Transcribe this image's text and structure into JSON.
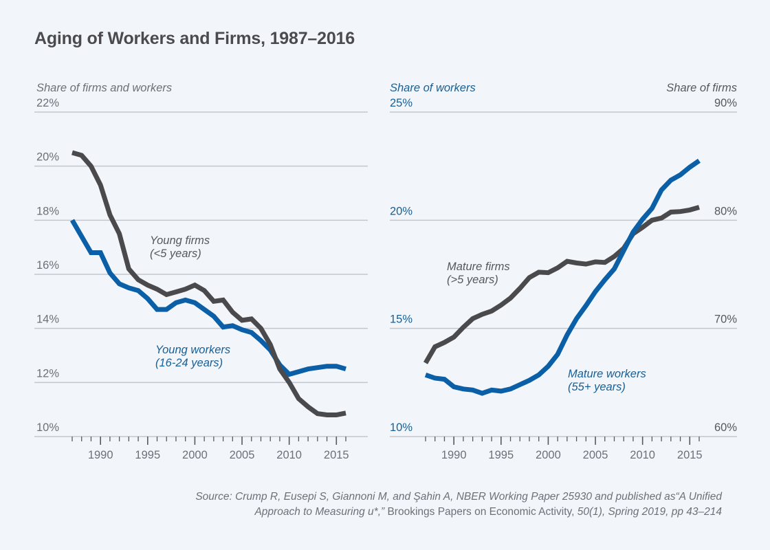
{
  "title": "Aging of Workers and Firms, 1987–2016",
  "colors": {
    "background": "#f2f6fa",
    "firms": "#4a4a4d",
    "workers": "#0a5fa6",
    "gridline": "#c3c6cc",
    "tick_text": "#6c7078",
    "workers_text": "#175f96"
  },
  "source": {
    "line1_italic": "Source: Crump R, Eusepi S, Giannoni M, and Şahin A, NBER Working Paper 25930 and published as“A Unified",
    "line2_italic_a": "Approach to Measuring u*,”",
    "line2_regular": " Brookings Papers on Economic Activity,",
    "line2_italic_b": " 50(1), Spring 2019, pp 43–214"
  },
  "chart_data": [
    {
      "type": "line",
      "title": "",
      "ylabel": "Share of firms and workers",
      "xlabel": "",
      "ylim": [
        10,
        22
      ],
      "yticks": [
        10,
        12,
        14,
        16,
        18,
        20,
        22
      ],
      "ytick_labels": [
        "10%",
        "12%",
        "14%",
        "16%",
        "18%",
        "20%",
        "22%"
      ],
      "xlim": [
        1987,
        2016
      ],
      "xticks": [
        1990,
        1995,
        2000,
        2005,
        2010,
        2015
      ],
      "xtick_labels": [
        "1990",
        "1995",
        "2000",
        "2005",
        "2010",
        "2015"
      ],
      "grid": true,
      "x": [
        1987,
        1988,
        1989,
        1990,
        1991,
        1992,
        1993,
        1994,
        1995,
        1996,
        1997,
        1998,
        1999,
        2000,
        2001,
        2002,
        2003,
        2004,
        2005,
        2006,
        2007,
        2008,
        2009,
        2010,
        2011,
        2012,
        2013,
        2014,
        2015,
        2016
      ],
      "series": [
        {
          "name": "Young firms",
          "annotation": [
            "Young firms",
            "(<5 years)"
          ],
          "color": "#4a4a4d",
          "values": [
            20.5,
            20.4,
            20.0,
            19.3,
            18.2,
            17.5,
            16.2,
            15.8,
            15.6,
            15.45,
            15.25,
            15.35,
            15.45,
            15.6,
            15.4,
            15.0,
            15.05,
            14.6,
            14.3,
            14.35,
            14.0,
            13.4,
            12.5,
            12.0,
            11.4,
            11.1,
            10.85,
            10.8,
            10.8,
            10.87
          ]
        },
        {
          "name": "Young workers",
          "annotation": [
            "Young workers",
            "(16-24 years)"
          ],
          "color": "#0a5fa6",
          "values": [
            18.0,
            17.4,
            16.8,
            16.8,
            16.05,
            15.65,
            15.5,
            15.4,
            15.1,
            14.7,
            14.7,
            14.95,
            15.05,
            14.95,
            14.7,
            14.45,
            14.05,
            14.1,
            13.95,
            13.85,
            13.55,
            13.2,
            12.65,
            12.3,
            12.4,
            12.5,
            12.55,
            12.6,
            12.6,
            12.5
          ]
        }
      ]
    },
    {
      "type": "line",
      "title": "",
      "ylabel_left": "Share of workers",
      "ylabel_right": "Share of firms",
      "xlabel": "",
      "ylim_left": [
        10,
        25
      ],
      "yticks_left": [
        10,
        15,
        20,
        25
      ],
      "ytick_labels_left": [
        "10%",
        "15%",
        "20%",
        "25%"
      ],
      "ylim_right": [
        60,
        90
      ],
      "yticks_right": [
        60,
        70,
        80,
        90
      ],
      "ytick_labels_right": [
        "60%",
        "70%",
        "80%",
        "90%"
      ],
      "xlim": [
        1987,
        2016
      ],
      "xticks": [
        1990,
        1995,
        2000,
        2005,
        2010,
        2015
      ],
      "xtick_labels": [
        "1990",
        "1995",
        "2000",
        "2005",
        "2010",
        "2015"
      ],
      "grid": true,
      "x": [
        1987,
        1988,
        1989,
        1990,
        1991,
        1992,
        1993,
        1994,
        1995,
        1996,
        1997,
        1998,
        1999,
        2000,
        2001,
        2002,
        2003,
        2004,
        2005,
        2006,
        2007,
        2008,
        2009,
        2010,
        2011,
        2012,
        2013,
        2014,
        2015,
        2016
      ],
      "series": [
        {
          "name": "Mature firms",
          "annotation": [
            "Mature firms",
            "(>5 years)"
          ],
          "axis": "right",
          "color": "#4a4a4d",
          "values": [
            66.8,
            68.3,
            68.7,
            69.2,
            70.1,
            70.9,
            71.3,
            71.6,
            72.15,
            72.8,
            73.7,
            74.7,
            75.2,
            75.15,
            75.6,
            76.2,
            76.05,
            75.95,
            76.15,
            76.1,
            76.65,
            77.4,
            78.75,
            79.35,
            80.0,
            80.2,
            80.75,
            80.8,
            80.95,
            81.2
          ]
        },
        {
          "name": "Mature workers",
          "annotation": [
            "Mature workers",
            "(55+ years)"
          ],
          "axis": "left",
          "color": "#0a5fa6",
          "values": [
            12.85,
            12.7,
            12.65,
            12.3,
            12.2,
            12.15,
            12.0,
            12.15,
            12.1,
            12.2,
            12.4,
            12.6,
            12.85,
            13.25,
            13.8,
            14.7,
            15.45,
            16.05,
            16.7,
            17.25,
            17.75,
            18.6,
            19.45,
            20.05,
            20.55,
            21.4,
            21.85,
            22.1,
            22.45,
            22.75
          ]
        }
      ]
    }
  ]
}
